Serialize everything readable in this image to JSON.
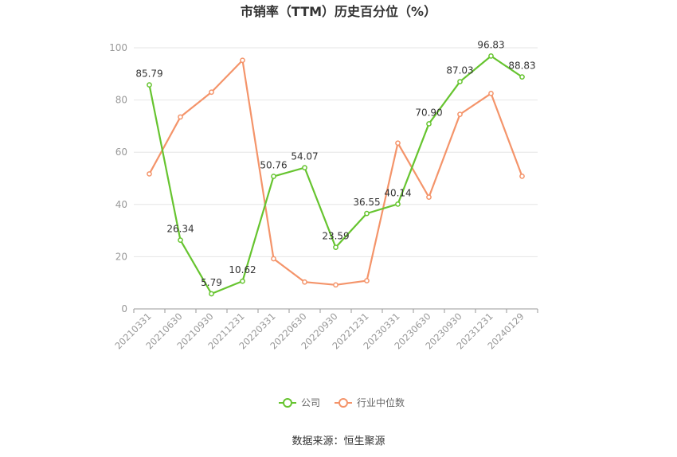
{
  "chart_data": {
    "type": "line",
    "title": "市销率（TTM）历史百分位（%）",
    "categories": [
      "20210331",
      "20210630",
      "20210930",
      "20211231",
      "20220331",
      "20220630",
      "20220930",
      "20221231",
      "20230331",
      "20230630",
      "20230930",
      "20231231",
      "20240129"
    ],
    "ylim": [
      0,
      100
    ],
    "yticks": [
      "0",
      "20",
      "40",
      "60",
      "80",
      "100"
    ],
    "grid": true,
    "legend_position": "bottom",
    "series": [
      {
        "name": "公司",
        "color": "#66c42f",
        "values": [
          85.79,
          26.34,
          5.79,
          10.62,
          50.76,
          54.07,
          23.59,
          36.55,
          40.14,
          70.9,
          87.03,
          96.83,
          88.83
        ],
        "labels": [
          "85.79",
          "26.34",
          "5.79",
          "10.62",
          "50.76",
          "54.07",
          "23.59",
          "36.55",
          "40.14",
          "70.90",
          "87.03",
          "96.83",
          "88.83"
        ]
      },
      {
        "name": "行业中位数",
        "color": "#f4946a",
        "values": [
          51.7,
          73.5,
          83.0,
          95.2,
          19.2,
          10.3,
          9.2,
          10.8,
          63.5,
          42.8,
          74.5,
          82.5,
          50.8
        ]
      }
    ]
  },
  "source": "数据来源：恒生聚源"
}
